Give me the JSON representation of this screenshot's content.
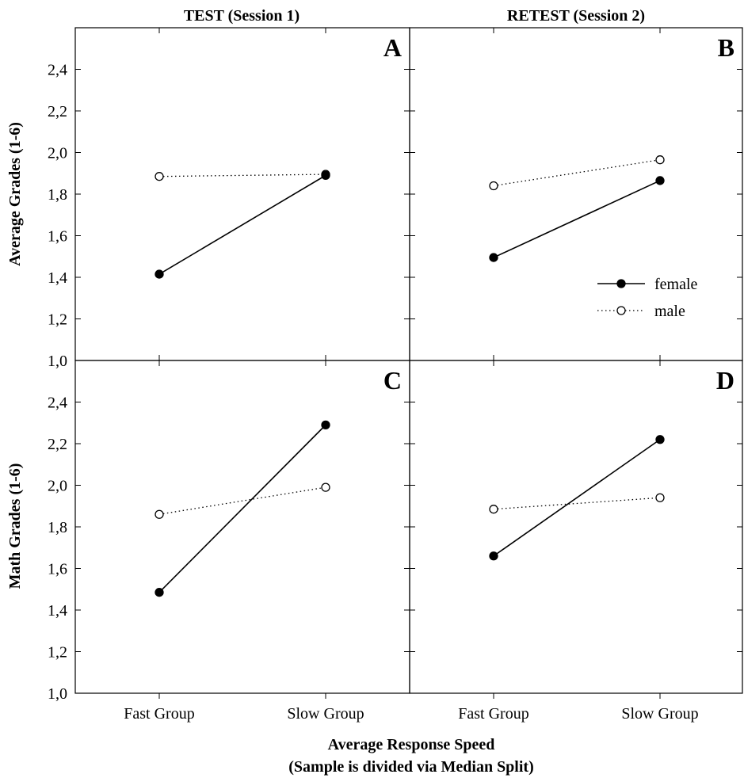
{
  "figure": {
    "column_titles": [
      "TEST (Session 1)",
      "RETEST (Session 2)"
    ],
    "row_ylabels": [
      "Average Grades (1-6)",
      "Math Grades (1-6)"
    ],
    "xaxis_title_line1": "Average Response Speed",
    "xaxis_title_line2": "(Sample is divided via Median Split)"
  },
  "legend": {
    "placement": "right, inside panel B",
    "entries": [
      {
        "label": "female",
        "marker": "filled-circle",
        "line": "solid"
      },
      {
        "label": "male",
        "marker": "open-circle",
        "line": "dotted"
      }
    ]
  },
  "chart_data": [
    {
      "type": "line",
      "panel": "A",
      "categories": [
        "Fast Group",
        "Slow Group"
      ],
      "ylim": [
        1.0,
        2.6
      ],
      "yticks": [
        "1,0",
        "1,2",
        "1,4",
        "1,6",
        "1,8",
        "2,0",
        "2,2",
        "2,4"
      ],
      "series": [
        {
          "name": "female",
          "values": [
            1.415,
            1.89
          ]
        },
        {
          "name": "male",
          "values": [
            1.885,
            1.895
          ]
        }
      ]
    },
    {
      "type": "line",
      "panel": "B",
      "categories": [
        "Fast Group",
        "Slow Group"
      ],
      "ylim": [
        1.0,
        2.6
      ],
      "yticks": [
        "1,0",
        "1,2",
        "1,4",
        "1,6",
        "1,8",
        "2,0",
        "2,2",
        "2,4"
      ],
      "series": [
        {
          "name": "female",
          "values": [
            1.495,
            1.865
          ]
        },
        {
          "name": "male",
          "values": [
            1.84,
            1.965
          ]
        }
      ]
    },
    {
      "type": "line",
      "panel": "C",
      "categories": [
        "Fast Group",
        "Slow Group"
      ],
      "ylim": [
        1.0,
        2.6
      ],
      "yticks": [
        "1,0",
        "1,2",
        "1,4",
        "1,6",
        "1,8",
        "2,0",
        "2,2",
        "2,4"
      ],
      "series": [
        {
          "name": "female",
          "values": [
            1.485,
            2.29
          ]
        },
        {
          "name": "male",
          "values": [
            1.86,
            1.99
          ]
        }
      ]
    },
    {
      "type": "line",
      "panel": "D",
      "categories": [
        "Fast Group",
        "Slow Group"
      ],
      "ylim": [
        1.0,
        2.6
      ],
      "yticks": [
        "1,0",
        "1,2",
        "1,4",
        "1,6",
        "1,8",
        "2,0",
        "2,2",
        "2,4"
      ],
      "series": [
        {
          "name": "female",
          "values": [
            1.66,
            2.22
          ]
        },
        {
          "name": "male",
          "values": [
            1.885,
            1.94
          ]
        }
      ]
    }
  ]
}
